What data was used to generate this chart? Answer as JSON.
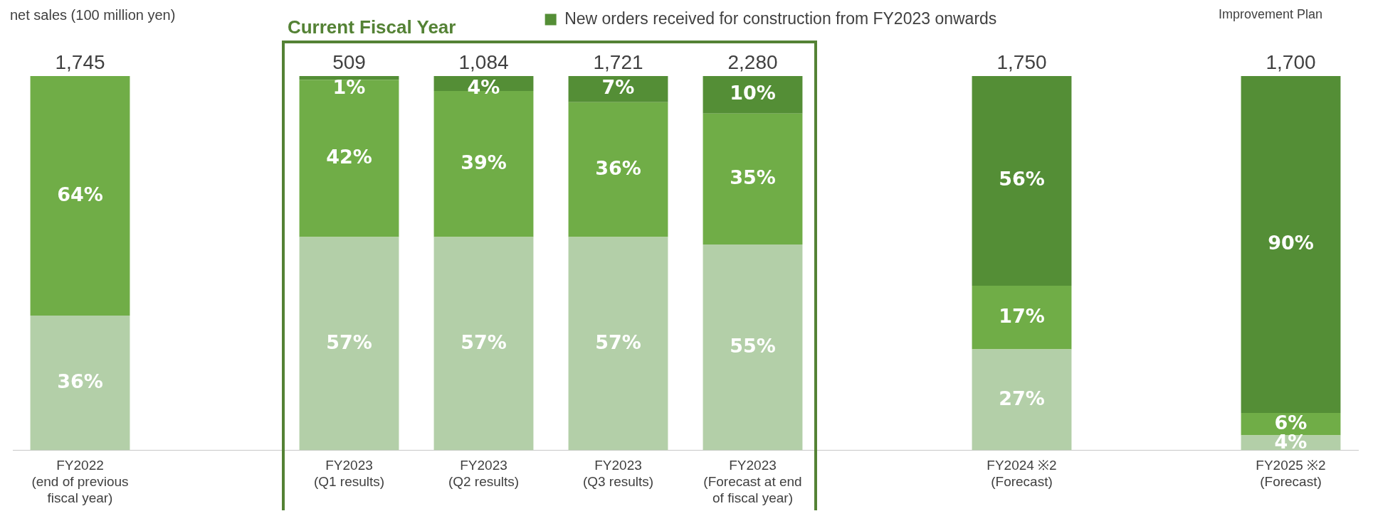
{
  "chart_data": {
    "type": "bar",
    "stacked": true,
    "legend": "top",
    "categories": [
      "FY2022\n(end of previous\nfiscal year)",
      null,
      "FY2023\n(Q1 results)",
      "FY2023\n(Q2 results)",
      "FY2023\n(Q3 results)",
      "FY2023\n(Forecast at end\nof fiscal year)",
      null,
      "FY2024 ※2\n(Forecast)",
      null,
      "FY2025 ※2\n(Forecast)"
    ],
    "series": [
      {
        "color": "#b3cfa8",
        "values": [
          36,
          null,
          57,
          57,
          57,
          55,
          null,
          27,
          null,
          4
        ],
        "value_labels": [
          "36%",
          null,
          "57%",
          "57%",
          "57%",
          "55%",
          null,
          "27%",
          null,
          "4%"
        ]
      },
      {
        "color": "#70ad47",
        "values": [
          64,
          null,
          42,
          39,
          36,
          35,
          null,
          17,
          null,
          6
        ],
        "value_labels": [
          "64%",
          null,
          "42%",
          "39%",
          "36%",
          "35%",
          null,
          "17%",
          null,
          "6%"
        ]
      },
      {
        "name": "New orders received for construction from FY2023 onwards",
        "color": "#548e36",
        "values": [
          null,
          null,
          1,
          4,
          7,
          10,
          null,
          56,
          null,
          90
        ],
        "value_labels": [
          null,
          null,
          "1%",
          "4%",
          "7%",
          "10%",
          null,
          "56%",
          null,
          "90%"
        ]
      }
    ],
    "annotations": [
      "net sales (100 million yen)",
      "Current Fiscal Year",
      "Improvement Plan",
      {
        "text": "1,745",
        "x": "FY2022\n(end of previous\nfiscal year)",
        "y": 100
      },
      {
        "text": "509",
        "x": "FY2023\n(Q1 results)",
        "y": 100
      },
      {
        "text": "1,084",
        "x": "FY2023\n(Q2 results)",
        "y": 100
      },
      {
        "text": "1,721",
        "x": "FY2023\n(Q3 results)",
        "y": 100
      },
      {
        "text": "2,280",
        "x": "FY2023\n(Forecast at end\nof fiscal year)",
        "y": 100
      },
      {
        "text": "1,750",
        "x": "FY2024 ※2\n(Forecast)",
        "y": 100
      },
      {
        "text": "1,700",
        "x": "FY2025 ※2\n(Forecast)",
        "y": 100
      }
    ]
  }
}
